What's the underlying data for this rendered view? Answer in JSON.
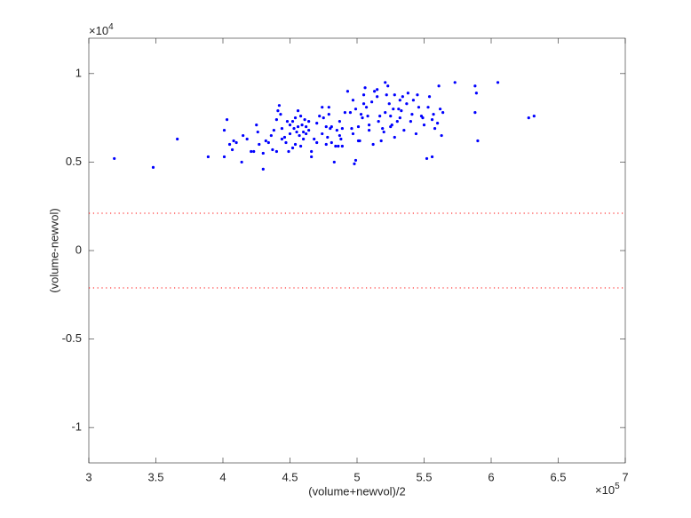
{
  "chart_data": {
    "type": "scatter",
    "xlabel": "(volume+newvol)/2",
    "ylabel": "(volume-newvol)",
    "x_multiplier": {
      "base": "×10",
      "exponent": "5"
    },
    "y_multiplier": {
      "base": "×10",
      "exponent": "4"
    },
    "color": "#0000ff",
    "hline_color": "#ff0000",
    "xlim": [
      3,
      7
    ],
    "ylim": [
      -1.2,
      1.2
    ],
    "xticks": [
      3,
      3.5,
      4,
      4.5,
      5,
      5.5,
      6,
      6.5,
      7
    ],
    "yticks": [
      -1,
      -0.5,
      0,
      0.5,
      1
    ],
    "hlines": [
      0.211,
      -0.211
    ],
    "x": [
      3.19,
      3.48,
      3.66,
      3.89,
      4.01,
      4.03,
      4.01,
      4.05,
      4.08,
      4.07,
      4.1,
      4.14,
      4.15,
      4.18,
      4.21,
      4.23,
      4.25,
      4.26,
      4.27,
      4.3,
      4.3,
      4.32,
      4.34,
      4.36,
      4.37,
      4.38,
      4.4,
      4.4,
      4.41,
      4.42,
      4.43,
      4.44,
      4.44,
      4.46,
      4.47,
      4.48,
      4.49,
      4.5,
      4.5,
      4.52,
      4.52,
      4.53,
      4.54,
      4.54,
      4.55,
      4.56,
      4.56,
      4.57,
      4.58,
      4.58,
      4.59,
      4.6,
      4.6,
      4.61,
      4.62,
      4.62,
      4.64,
      4.64,
      4.66,
      4.66,
      4.68,
      4.7,
      4.7,
      4.72,
      4.74,
      4.74,
      4.75,
      4.77,
      4.77,
      4.78,
      4.79,
      4.79,
      4.8,
      4.81,
      4.81,
      4.83,
      4.84,
      4.85,
      4.86,
      4.87,
      4.87,
      4.88,
      4.89,
      4.89,
      4.91,
      4.93,
      4.95,
      4.96,
      4.97,
      4.97,
      4.98,
      4.99,
      4.99,
      5.01,
      5.01,
      5.02,
      5.03,
      5.04,
      5.05,
      5.05,
      5.06,
      5.07,
      5.08,
      5.09,
      5.09,
      5.11,
      5.12,
      5.13,
      5.15,
      5.15,
      5.16,
      5.17,
      5.18,
      5.19,
      5.2,
      5.21,
      5.21,
      5.22,
      5.23,
      5.24,
      5.25,
      5.25,
      5.26,
      5.27,
      5.28,
      5.28,
      5.3,
      5.31,
      5.32,
      5.32,
      5.33,
      5.34,
      5.35,
      5.37,
      5.38,
      5.4,
      5.41,
      5.42,
      5.44,
      5.45,
      5.46,
      5.48,
      5.49,
      5.5,
      5.52,
      5.53,
      5.54,
      5.56,
      5.56,
      5.57,
      5.58,
      5.6,
      5.61,
      5.62,
      5.63,
      5.64,
      5.73,
      5.88,
      5.89,
      5.88,
      5.9,
      6.05,
      6.28,
      6.32
    ],
    "values": [
      0.52,
      0.47,
      0.63,
      0.53,
      0.53,
      0.74,
      0.68,
      0.6,
      0.62,
      0.57,
      0.61,
      0.5,
      0.65,
      0.63,
      0.56,
      0.56,
      0.71,
      0.67,
      0.6,
      0.55,
      0.46,
      0.62,
      0.61,
      0.65,
      0.57,
      0.68,
      0.56,
      0.74,
      0.79,
      0.82,
      0.77,
      0.69,
      0.63,
      0.64,
      0.61,
      0.73,
      0.56,
      0.66,
      0.71,
      0.58,
      0.73,
      0.69,
      0.75,
      0.6,
      0.67,
      0.7,
      0.79,
      0.65,
      0.59,
      0.76,
      0.71,
      0.67,
      0.63,
      0.74,
      0.7,
      0.66,
      0.68,
      0.73,
      0.56,
      0.53,
      0.63,
      0.72,
      0.61,
      0.76,
      0.81,
      0.66,
      0.75,
      0.7,
      0.6,
      0.64,
      0.81,
      0.77,
      0.69,
      0.7,
      0.61,
      0.5,
      0.59,
      0.68,
      0.59,
      0.65,
      0.73,
      0.63,
      0.69,
      0.59,
      0.78,
      0.9,
      0.78,
      0.69,
      0.85,
      0.66,
      0.49,
      0.51,
      0.8,
      0.62,
      0.7,
      0.62,
      0.77,
      0.75,
      0.83,
      0.88,
      0.92,
      0.81,
      0.76,
      0.71,
      0.68,
      0.84,
      0.6,
      0.9,
      0.87,
      0.91,
      0.73,
      0.76,
      0.62,
      0.69,
      0.67,
      0.95,
      0.78,
      0.88,
      0.93,
      0.83,
      0.76,
      0.7,
      0.71,
      0.8,
      0.88,
      0.64,
      0.73,
      0.8,
      0.85,
      0.75,
      0.79,
      0.87,
      0.68,
      0.83,
      0.89,
      0.73,
      0.77,
      0.85,
      0.66,
      0.88,
      0.81,
      0.76,
      0.75,
      0.71,
      0.52,
      0.81,
      0.87,
      0.74,
      0.53,
      0.77,
      0.69,
      0.72,
      0.93,
      0.8,
      0.65,
      0.78,
      0.95,
      0.93,
      0.89,
      0.78,
      0.62,
      0.95,
      0.75,
      0.76
    ]
  }
}
